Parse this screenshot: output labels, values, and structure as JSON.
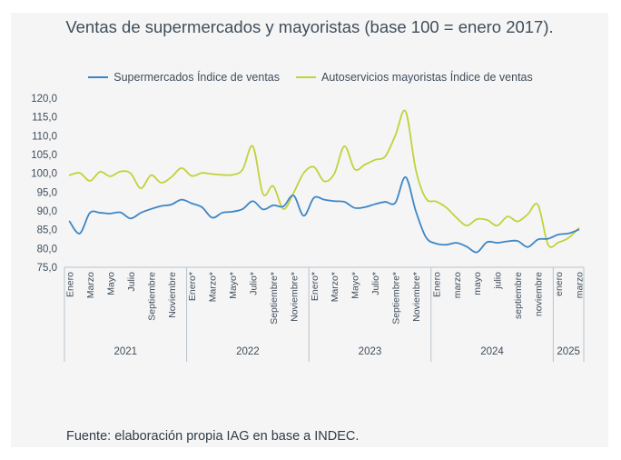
{
  "chart_data": {
    "type": "line",
    "title": "Ventas de supermercados y mayoristas (base 100 = enero 2017).",
    "ylim": [
      75,
      120
    ],
    "yticks": [
      "75,0",
      "80,0",
      "85,0",
      "90,0",
      "95,0",
      "100,0",
      "105,0",
      "110,0",
      "115,0",
      "120,0"
    ],
    "ytick_values": [
      75,
      80,
      85,
      90,
      95,
      100,
      105,
      110,
      115,
      120
    ],
    "grid": false,
    "legend_position": "top",
    "x_month_labels": [
      "Enero",
      "",
      "Marzo",
      "",
      "Mayo",
      "",
      "Julio",
      "",
      "Septiembre",
      "",
      "Noviembre",
      "",
      "Enero*",
      "",
      "Marzo*",
      "",
      "Mayo*",
      "",
      "Julio*",
      "",
      "Septiembre*",
      "",
      "Noviembre*",
      "",
      "Enero*",
      "",
      "Marzo*",
      "",
      "Mayo*",
      "",
      "Julio*",
      "",
      "Septiembre*",
      "",
      "Noviembre*",
      "",
      "Enero",
      "",
      "marzo",
      "",
      "mayo",
      "",
      "julio",
      "",
      "septiembre",
      "",
      "noviembre",
      "",
      "enero",
      "",
      "marzo"
    ],
    "years": [
      {
        "label": "2021",
        "start": 0,
        "end": 11
      },
      {
        "label": "2022",
        "start": 12,
        "end": 23
      },
      {
        "label": "2023",
        "start": 24,
        "end": 35
      },
      {
        "label": "2024",
        "start": 36,
        "end": 47
      },
      {
        "label": "2025",
        "start": 48,
        "end": 50
      }
    ],
    "series": [
      {
        "name": "Supermercados Índice de ventas",
        "color": "#3d86c6",
        "values": [
          87.2,
          84.0,
          89.5,
          89.5,
          89.3,
          89.6,
          88.0,
          89.5,
          90.5,
          91.3,
          91.7,
          93.0,
          92.0,
          91.0,
          88.2,
          89.5,
          89.8,
          90.5,
          92.6,
          90.4,
          91.5,
          91.2,
          94.1,
          88.7,
          93.5,
          93.0,
          92.6,
          92.4,
          90.8,
          91.0,
          91.8,
          92.4,
          92.2,
          99.0,
          90.0,
          83.0,
          81.3,
          81.0,
          81.5,
          80.5,
          79.0,
          81.7,
          81.5,
          81.9,
          82.0,
          80.4,
          82.4,
          82.6,
          83.7,
          84.0,
          85.0
        ]
      },
      {
        "name": "Autoservicios mayoristas Índice de ventas",
        "color": "#c2d23b",
        "values": [
          99.5,
          100.1,
          98.0,
          100.4,
          99.2,
          100.5,
          100.0,
          96.0,
          99.5,
          97.5,
          99.0,
          101.4,
          99.3,
          100.1,
          99.8,
          99.6,
          99.6,
          101.0,
          107.2,
          94.5,
          96.6,
          90.5,
          94.8,
          100.1,
          101.7,
          97.9,
          99.9,
          107.2,
          101.1,
          102.3,
          103.6,
          104.5,
          110.1,
          116.5,
          101.0,
          93.3,
          92.5,
          90.9,
          88.2,
          86.1,
          87.8,
          87.6,
          86.1,
          88.5,
          87.2,
          89.1,
          91.6,
          81.0,
          81.6,
          82.8,
          85.4
        ]
      }
    ]
  },
  "source_note": "Fuente: elaboración propia IAG en base a INDEC."
}
